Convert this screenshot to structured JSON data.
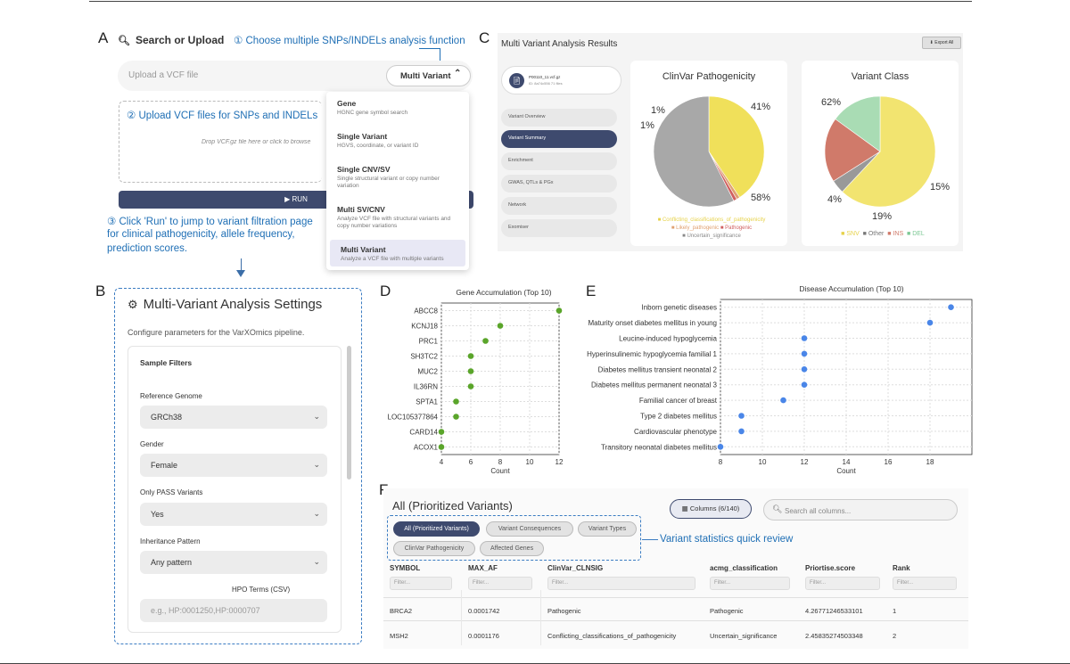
{
  "labels": {
    "A": "A",
    "B": "B",
    "C": "C",
    "D": "D",
    "E": "E",
    "F": "F"
  },
  "panelA": {
    "search_title": "Search or Upload",
    "step1": "① Choose multiple SNPs/INDELs analysis function",
    "upload_placeholder": "Upload a VCF file",
    "mode": "Multi Variant",
    "step2": "② Upload VCF files for SNPs and INDELs",
    "drop_text": "Drop VCF.gz file here or click to browse",
    "run": "▶  RUN",
    "step3a": "③ Click 'Run' to jump to variant filtration page",
    "step3b": "for clinical pathogenicity, allele frequency,",
    "step3c": "prediction scores.",
    "menu": [
      {
        "title": "Gene",
        "desc": "HGNC gene symbol search"
      },
      {
        "title": "Single Variant",
        "desc": "HGVS, coordinate, or variant ID"
      },
      {
        "title": "Single CNV/SV",
        "desc": "Single structural variant or copy number variation"
      },
      {
        "title": "Multi SV/CNV",
        "desc": "Analyze VCF file with structural variants and copy number variations"
      },
      {
        "title": "Multi Variant",
        "desc": "Analyze a VCF file with multiple variants"
      }
    ]
  },
  "panelB": {
    "title": "Multi-Variant Analysis Settings",
    "subtitle": "Configure parameters for the VarXOmics pipeline.",
    "section": "Sample Filters",
    "fields": [
      {
        "label": "Reference Genome",
        "value": "GRCh38"
      },
      {
        "label": "Gender",
        "value": "Female"
      },
      {
        "label": "Only PASS Variants",
        "value": "Yes"
      },
      {
        "label": "Inheritance Pattern",
        "value": "Any pattern"
      }
    ],
    "hpo_label": "HPO Terms (CSV)",
    "hpo_placeholder": "e.g., HP:0001250,HP:0000707"
  },
  "panelC": {
    "title": "Multi Variant Analysis Results",
    "export": "Export All",
    "file_name": "P00110_11.vcf.gz",
    "file_meta": "ID: 8a74c556       71 files",
    "nav": [
      "Variant Overview",
      "Variant Summary",
      "Enrichment",
      "GWAS, QTLs & PGx",
      "Network",
      "Exomiser"
    ],
    "clinvar_title": "ClinVar Pathogenicity",
    "class_title": "Variant Class",
    "clinvar_pcts": [
      "1%",
      "1%",
      "41%",
      "58%"
    ],
    "class_pcts": [
      "62%",
      "4%",
      "19%",
      "15%"
    ],
    "clinvar_legend": [
      "Conflicting_classifications_of_pathogenicity",
      "Likely_pathogenic",
      "Pathogenic",
      "Uncertain_significance"
    ],
    "class_legend": [
      "SNV",
      "Other",
      "INS",
      "DEL"
    ]
  },
  "chart_data": [
    {
      "type": "scatter",
      "title": "Gene Accumulation (Top 10)",
      "xlabel": "Count",
      "ylabel": "",
      "categories": [
        "ABCC8",
        "KCNJ18",
        "PRC1",
        "SH3TC2",
        "MUC2",
        "IL36RN",
        "SPTA1",
        "LOC105377864",
        "CARD14",
        "ACOX1"
      ],
      "values": [
        12,
        8,
        7,
        6,
        6,
        6,
        5,
        5,
        4,
        4
      ],
      "xlim": [
        4,
        12
      ],
      "xticks": [
        "4",
        "6",
        "8",
        "10",
        "12"
      ],
      "color": "#5aa52a"
    },
    {
      "type": "scatter",
      "title": "Disease Accumulation (Top 10)",
      "xlabel": "Count",
      "ylabel": "",
      "categories": [
        "Inborn genetic diseases",
        "Maturity onset diabetes mellitus in young",
        "Leucine-induced hypoglycemia",
        "Hyperinsulinemic hypoglycemia familial 1",
        "Diabetes mellitus transient neonatal 2",
        "Diabetes mellitus permanent neonatal 3",
        "Familial cancer of breast",
        "Type 2 diabetes mellitus",
        "Cardiovascular phenotype",
        "Transitory neonatal diabetes mellitus"
      ],
      "values": [
        19,
        18,
        12,
        12,
        12,
        12,
        11,
        9,
        9,
        8
      ],
      "xlim": [
        8,
        20
      ],
      "xticks": [
        "8",
        "10",
        "12",
        "14",
        "16",
        "18"
      ],
      "color": "#4a86e8"
    },
    {
      "type": "pie",
      "title": "ClinVar Pathogenicity",
      "categories": [
        "Conflicting_classifications_of_pathogenicity",
        "Likely_pathogenic",
        "Pathogenic",
        "Uncertain_significance"
      ],
      "values": [
        41,
        1,
        1,
        58
      ],
      "colors": [
        "#f0e05a",
        "#e0a070",
        "#d06060",
        "#a8a8a8"
      ]
    },
    {
      "type": "pie",
      "title": "Variant Class",
      "categories": [
        "SNV",
        "Other",
        "INS",
        "DEL"
      ],
      "values": [
        62,
        4,
        19,
        15
      ],
      "colors": [
        "#f2e470",
        "#999999",
        "#d07a6a",
        "#a9dcb4"
      ]
    }
  ],
  "panelF": {
    "title": "All (Prioritized Variants)",
    "columns_btn": "Columns (6/140)",
    "search_placeholder": "Search all columns...",
    "tabs": [
      "All (Prioritized Variants)",
      "Variant Consequences",
      "Variant Types",
      "ClinVar Pathogenicity",
      "Affected Genes"
    ],
    "note": "Variant statistics quick review",
    "headers": [
      "SYMBOL",
      "MAX_AF",
      "ClinVar_CLNSIG",
      "acmg_classification",
      "Priortise.score",
      "Rank"
    ],
    "filter": "Filter...",
    "rows": [
      [
        "BRCA2",
        "0.0001742",
        "Pathogenic",
        "Pathogenic",
        "4.26771246533101",
        "1"
      ],
      [
        "MSH2",
        "0.0001176",
        "Conflicting_classifications_of_pathogenicity",
        "Uncertain_significance",
        "2.45835274503348",
        "2"
      ]
    ]
  }
}
